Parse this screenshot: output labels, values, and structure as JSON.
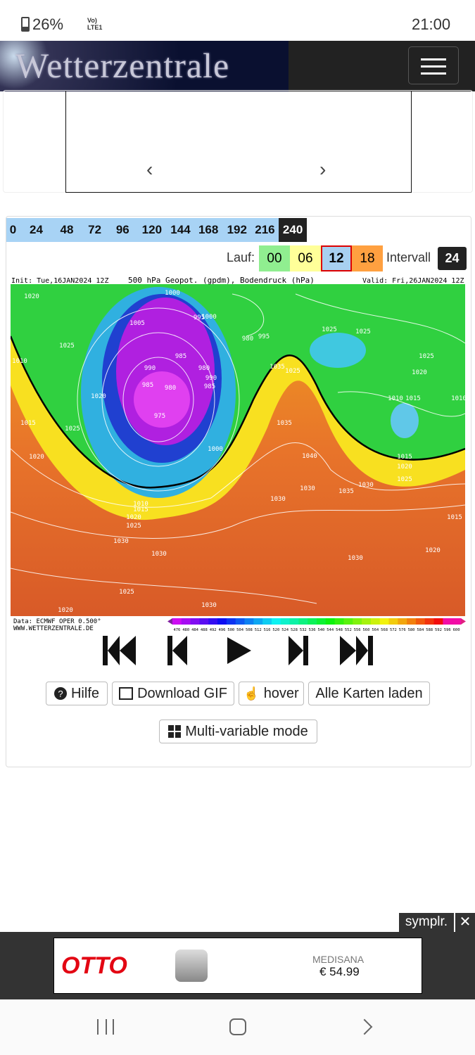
{
  "status_bar": {
    "battery": "26%",
    "network": "Vo) LTE1",
    "time": "21:00"
  },
  "header": {
    "logo": "Wetterzentrale"
  },
  "timesteps": [
    "0",
    "24",
    "48",
    "72",
    "96",
    "120",
    "144",
    "168",
    "192",
    "216",
    "240"
  ],
  "run": {
    "label": "Lauf:",
    "options": [
      "00",
      "06",
      "12",
      "18"
    ],
    "interval_label": "Intervall",
    "interval": "24"
  },
  "map": {
    "init": "Init: Tue,16JAN2024 12Z",
    "title": "500 hPa Geopot. (gpdm), Bodendruck (hPa)",
    "valid": "Valid: Fri,26JAN2024 12Z",
    "source": "Data: ECMWF OPER 0.500°",
    "site": "WWW.WETTERZENTRALE.DE",
    "isobar_labels": [
      "1020",
      "1025",
      "1010",
      "1020",
      "1015",
      "1025",
      "1020",
      "1005",
      "1000",
      "990",
      "985",
      "975",
      "980",
      "985",
      "995",
      "980",
      "990",
      "1000",
      "985",
      "1010",
      "1015",
      "1020",
      "1025",
      "1030",
      "1030",
      "1025",
      "1020",
      "1030",
      "1035",
      "1040",
      "1030",
      "1035",
      "1025",
      "1030",
      "1010",
      "1015",
      "1035",
      "1025",
      "1030",
      "1020",
      "1015",
      "1020",
      "1025",
      "1010",
      "1025",
      "1015",
      "1020",
      "1030",
      "1025",
      "1025",
      "1030",
      "1000",
      "995",
      "980"
    ],
    "colorbar": [
      476,
      480,
      484,
      488,
      492,
      496,
      500,
      504,
      508,
      512,
      516,
      520,
      524,
      528,
      532,
      536,
      540,
      544,
      548,
      552,
      556,
      560,
      564,
      568,
      572,
      576,
      580,
      584,
      588,
      592,
      596,
      600
    ]
  },
  "buttons": [
    "Hilfe",
    "Download GIF",
    "hover",
    "Alle Karten laden",
    "Multi-variable mode"
  ],
  "ad": {
    "provider": "symplr.",
    "brand": "OTTO",
    "product": "MEDISANA",
    "price": "€ 54.99"
  }
}
